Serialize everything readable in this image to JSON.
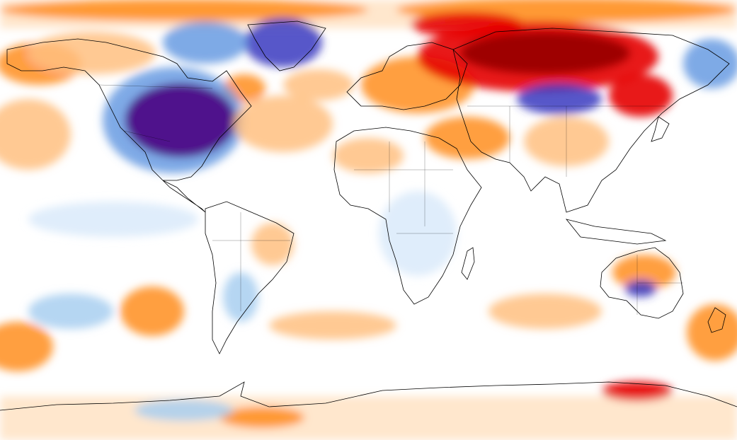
{
  "map": {
    "projection": "equirectangular",
    "field": "temperature-anomaly",
    "palette": {
      "extreme_warm": "#9e0000",
      "strong_warm": "#e60000",
      "warm": "#ff7f00",
      "mild_warm": "#ffbf80",
      "faint_warm": "#ffe4c8",
      "neutral": "#ffffff",
      "faint_cool": "#dcebfb",
      "mild_cool": "#a8cff0",
      "cool": "#5f95e0",
      "strong_cool": "#3a3ac0",
      "extreme_cool": "#4b0082",
      "coastline": "#000000"
    },
    "legend_visible": false,
    "labels_visible": false
  }
}
